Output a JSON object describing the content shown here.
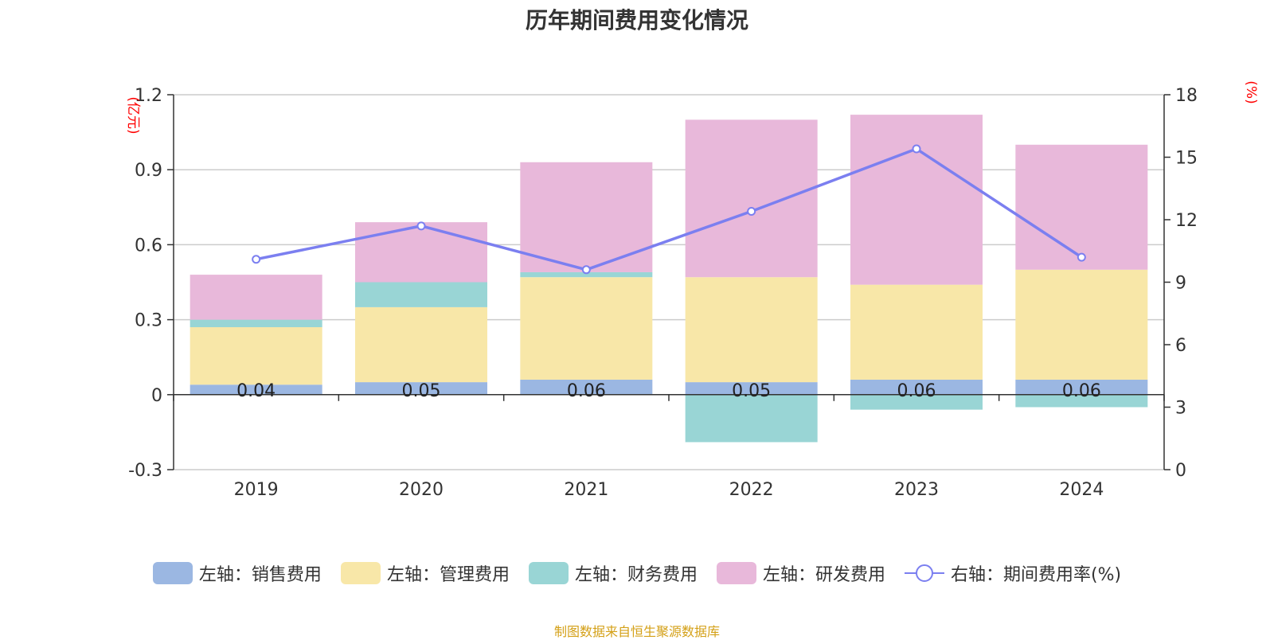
{
  "chart_data": {
    "type": "bar",
    "title": "历年期间费用变化情况",
    "source": "制图数据来自恒生聚源数据库",
    "categories": [
      "2019",
      "2020",
      "2021",
      "2022",
      "2023",
      "2024"
    ],
    "left_axis": {
      "unit": "(亿元)",
      "ylim": [
        -0.3,
        1.2
      ],
      "ticks": [
        "-0.3",
        "0",
        "0.3",
        "0.6",
        "0.9",
        "1.2"
      ],
      "tick_values": [
        -0.3,
        0,
        0.3,
        0.6,
        0.9,
        1.2
      ]
    },
    "right_axis": {
      "unit": "(%)",
      "ylim": [
        0,
        18
      ],
      "ticks": [
        "0",
        "3",
        "6",
        "9",
        "12",
        "15",
        "18"
      ],
      "tick_values": [
        0,
        3,
        6,
        9,
        12,
        15,
        18
      ]
    },
    "grid": true,
    "legend_position": "bottom",
    "series": [
      {
        "name": "左轴：销售费用",
        "type": "bar",
        "color": "#9bb7e2",
        "values": [
          0.04,
          0.05,
          0.06,
          0.05,
          0.06,
          0.06
        ],
        "labels": [
          "0.04",
          "0.05",
          "0.06",
          "0.05",
          "0.06",
          "0.06"
        ]
      },
      {
        "name": "左轴：管理费用",
        "type": "bar",
        "color": "#f8e7a8",
        "values": [
          0.23,
          0.3,
          0.41,
          0.42,
          0.38,
          0.44
        ]
      },
      {
        "name": "左轴：财务费用",
        "type": "bar",
        "color": "#99d5d5",
        "values": [
          0.03,
          0.1,
          0.02,
          -0.19,
          -0.06,
          -0.05
        ]
      },
      {
        "name": "左轴：研发费用",
        "type": "bar",
        "color": "#e8b8da",
        "values": [
          0.18,
          0.24,
          0.44,
          0.63,
          0.68,
          0.5
        ]
      },
      {
        "name": "右轴：期间费用率(%)",
        "type": "line",
        "color": "#7b7ff0",
        "values": [
          10.1,
          11.7,
          9.6,
          12.4,
          15.4,
          10.2
        ]
      }
    ]
  }
}
